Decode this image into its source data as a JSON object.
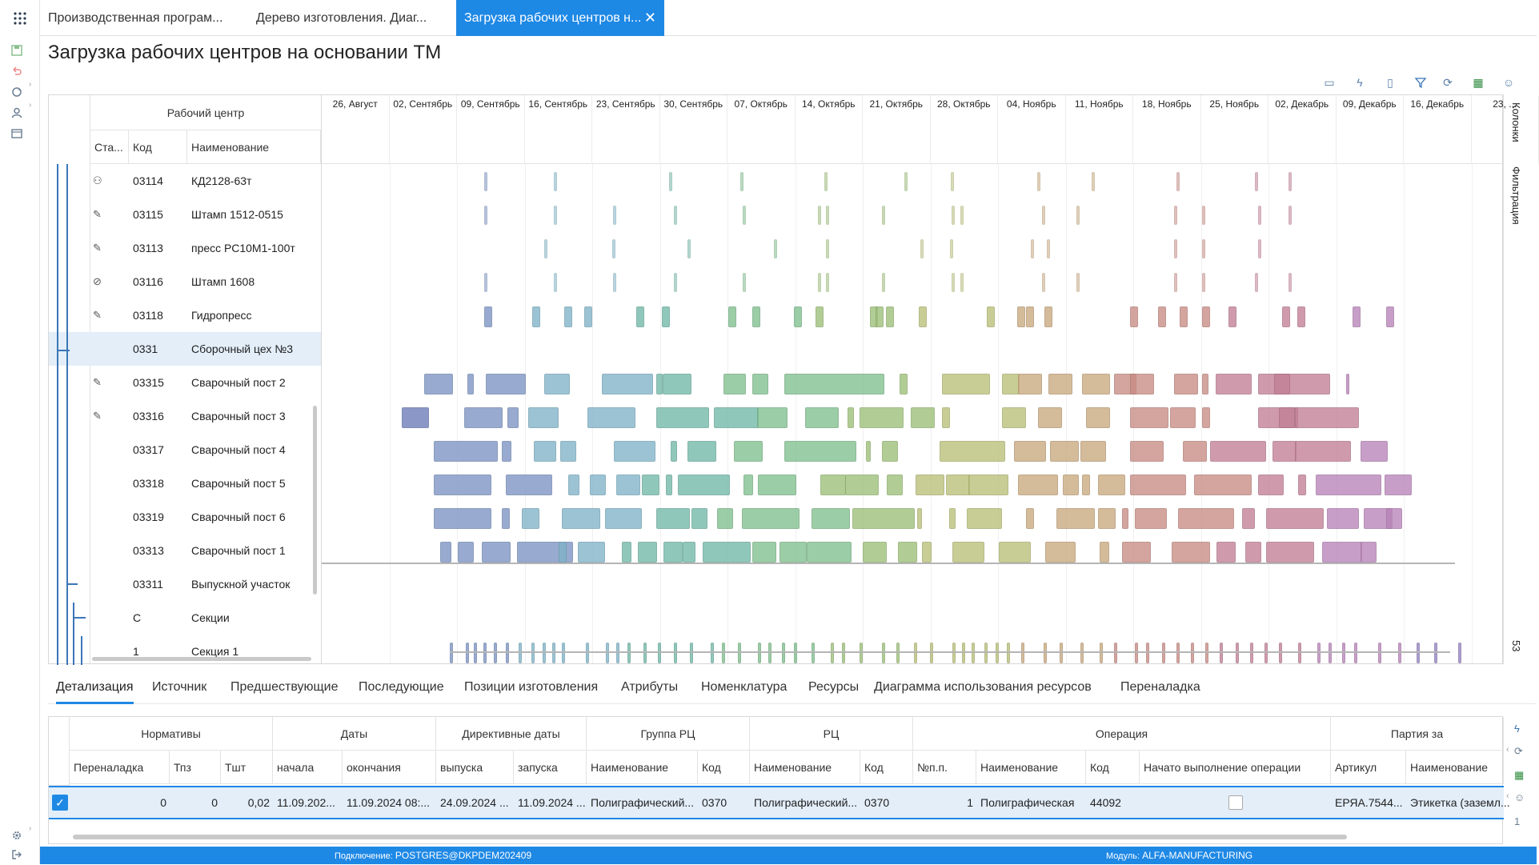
{
  "tabs": [
    {
      "label": "Производственная програм..."
    },
    {
      "label": "Дерево изготовления. Диаг..."
    },
    {
      "label": "Загрузка рабочих центров н..."
    }
  ],
  "page_title": "Загрузка рабочих центров на основании ТМ",
  "left_header": {
    "group": "Рабочий центр",
    "col_status": "Ста...",
    "col_code": "Код",
    "col_name": "Наименование"
  },
  "rows": [
    {
      "code": "03114",
      "name": "КД2128-63т",
      "status_icon": "user-icon"
    },
    {
      "code": "03115",
      "name": "Штамп 1512-0515",
      "status_icon": "edit-doc-icon"
    },
    {
      "code": "03113",
      "name": "пресс РС10М1-100т",
      "status_icon": "edit-doc-icon"
    },
    {
      "code": "03116",
      "name": "Штамп 1608",
      "status_icon": "blocked-icon"
    },
    {
      "code": "03118",
      "name": "Гидропресс",
      "status_icon": "edit-doc-icon"
    },
    {
      "code": "0331",
      "name": "Сборочный цех №3",
      "status_icon": ""
    },
    {
      "code": "03315",
      "name": "Сварочный пост 2",
      "status_icon": "edit-doc-icon"
    },
    {
      "code": "03316",
      "name": "Сварочный пост 3",
      "status_icon": "edit-doc-icon"
    },
    {
      "code": "03317",
      "name": "Сварочный пост 4",
      "status_icon": ""
    },
    {
      "code": "03318",
      "name": "Сварочный пост 5",
      "status_icon": ""
    },
    {
      "code": "03319",
      "name": "Сварочный пост 6",
      "status_icon": ""
    },
    {
      "code": "03313",
      "name": "Сварочный пост 1",
      "status_icon": ""
    },
    {
      "code": "03311",
      "name": "Выпускной участок",
      "status_icon": ""
    },
    {
      "code": "С",
      "name": "Секции",
      "status_icon": ""
    },
    {
      "code": "1",
      "name": "Секция 1",
      "status_icon": ""
    }
  ],
  "weeks": [
    "26, Август",
    "02, Сентябрь",
    "09, Сентябрь",
    "16, Сентябрь",
    "23, Сентябрь",
    "30, Сентябрь",
    "07, Октябрь",
    "14, Октябрь",
    "21, Октябрь",
    "28, Октябрь",
    "04, Ноябрь",
    "11, Ноябрь",
    "18, Ноябрь",
    "25, Ноябрь",
    "02, Декабрь",
    "09, Декабрь",
    "16, Декабрь",
    "23, ..."
  ],
  "right_tabs": {
    "columns": "Колонки",
    "filter": "Фильтрация",
    "count": "53"
  },
  "bottom_tabs": [
    "Детализация",
    "Источник",
    "Предшествующие",
    "Последующие",
    "Позиции изготовления",
    "Атрибуты",
    "Номенклатура",
    "Ресурсы",
    "Диаграмма использования ресурсов",
    "Переналадка"
  ],
  "detail": {
    "groups": [
      "Нормативы",
      "Даты",
      "Директивные даты",
      "Группа РЦ",
      "РЦ",
      "Операция",
      "Партия за"
    ],
    "columns": [
      "Переналадка",
      "Тпз",
      "Тшт",
      "начала",
      "окончания",
      "выпуска",
      "запуска",
      "Наименование",
      "Код",
      "Наименование",
      "Код",
      "№п.п.",
      "Наименование",
      "Код",
      "Начато выполнение операции",
      "Артикул",
      "Наименование"
    ],
    "row": [
      "0",
      "0",
      "0,02",
      "11.09.202...",
      "11.09.2024 08:...",
      "24.09.2024 ...",
      "11.09.2024 ...",
      "Полиграфический...",
      "0370",
      "Полиграфический...",
      "0370",
      "1",
      "Полиграфическая",
      "44092",
      "",
      "ЕРЯА.7544...",
      "Этикетка (заземл..."
    ]
  },
  "status_bar": {
    "conn_label": "Подключение:",
    "conn_value": "POSTGRES@DKPDEM202409",
    "module_label": "Модуль:",
    "module_value": "ALFA-MANUFACTURING"
  },
  "colors": {
    "accent": "#1e88e5"
  }
}
